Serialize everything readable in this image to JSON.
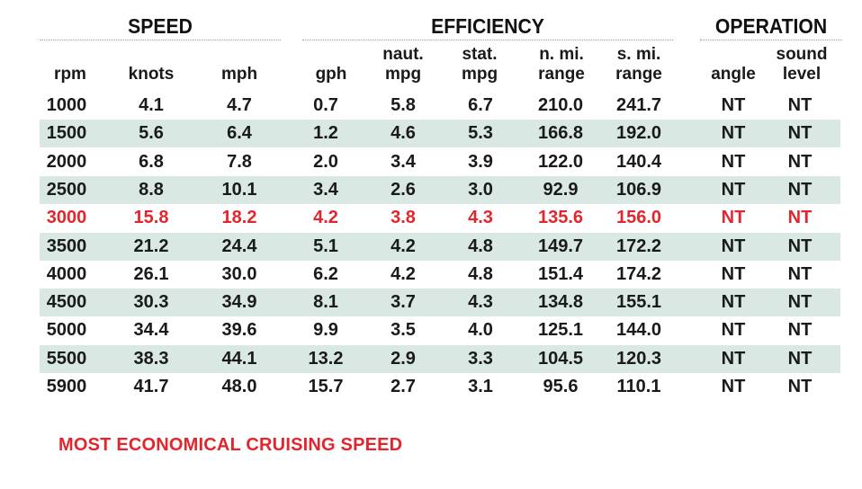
{
  "groups": {
    "speed": "SPEED",
    "efficiency": "EFFICIENCY",
    "operation": "OPERATION"
  },
  "headers": {
    "rpm": "rpm",
    "knots": "knots",
    "mph": "mph",
    "gph": "gph",
    "naut_mpg": [
      "naut.",
      "mpg"
    ],
    "stat_mpg": [
      "stat.",
      "mpg"
    ],
    "n_mi_range": [
      "n. mi.",
      "range"
    ],
    "s_mi_range": [
      "s. mi.",
      "range"
    ],
    "angle": "angle",
    "sound_level": [
      "sound",
      "level"
    ]
  },
  "rows": [
    [
      "1000",
      "4.1",
      "4.7",
      "0.7",
      "5.8",
      "6.7",
      "210.0",
      "241.7",
      "NT",
      "NT"
    ],
    [
      "1500",
      "5.6",
      "6.4",
      "1.2",
      "4.6",
      "5.3",
      "166.8",
      "192.0",
      "NT",
      "NT"
    ],
    [
      "2000",
      "6.8",
      "7.8",
      "2.0",
      "3.4",
      "3.9",
      "122.0",
      "140.4",
      "NT",
      "NT"
    ],
    [
      "2500",
      "8.8",
      "10.1",
      "3.4",
      "2.6",
      "3.0",
      "92.9",
      "106.9",
      "NT",
      "NT"
    ],
    [
      "3000",
      "15.8",
      "18.2",
      "4.2",
      "3.8",
      "4.3",
      "135.6",
      "156.0",
      "NT",
      "NT"
    ],
    [
      "3500",
      "21.2",
      "24.4",
      "5.1",
      "4.2",
      "4.8",
      "149.7",
      "172.2",
      "NT",
      "NT"
    ],
    [
      "4000",
      "26.1",
      "30.0",
      "6.2",
      "4.2",
      "4.8",
      "151.4",
      "174.2",
      "NT",
      "NT"
    ],
    [
      "4500",
      "30.3",
      "34.9",
      "8.1",
      "3.7",
      "4.3",
      "134.8",
      "155.1",
      "NT",
      "NT"
    ],
    [
      "5000",
      "34.4",
      "39.6",
      "9.9",
      "3.5",
      "4.0",
      "125.1",
      "144.0",
      "NT",
      "NT"
    ],
    [
      "5500",
      "38.3",
      "44.1",
      "13.2",
      "2.9",
      "3.3",
      "104.5",
      "120.3",
      "NT",
      "NT"
    ],
    [
      "5900",
      "41.7",
      "48.0",
      "15.7",
      "2.7",
      "3.1",
      "95.6",
      "110.1",
      "NT",
      "NT"
    ]
  ],
  "highlight_row_index": 4,
  "footnote": "MOST ECONOMICAL CRUISING SPEED",
  "colors": {
    "highlight": "#e3262d",
    "row_shade": "#d9e8e3"
  }
}
